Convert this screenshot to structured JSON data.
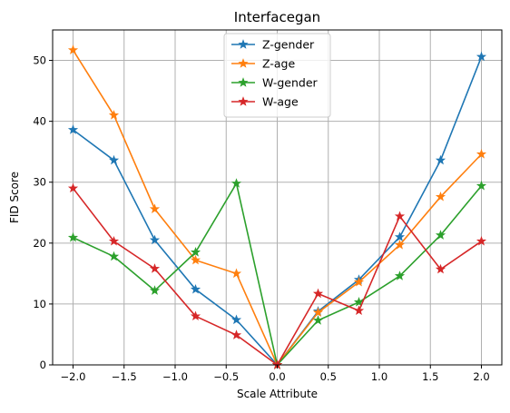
{
  "chart_data": {
    "type": "line",
    "title": "Interfacegan",
    "xlabel": "Scale Attribute",
    "ylabel": "FID Score",
    "xlim": [
      -2.2,
      2.2
    ],
    "ylim": [
      0,
      55
    ],
    "x_ticks": [
      -2.0,
      -1.5,
      -1.0,
      -0.5,
      0.0,
      0.5,
      1.0,
      1.5,
      2.0
    ],
    "x_tick_labels": [
      "−2.0",
      "−1.5",
      "−1.0",
      "−0.5",
      "0.0",
      "0.5",
      "1.0",
      "1.5",
      "2.0"
    ],
    "y_ticks": [
      0,
      10,
      20,
      30,
      40,
      50
    ],
    "y_tick_labels": [
      "0",
      "10",
      "20",
      "30",
      "40",
      "50"
    ],
    "grid": true,
    "legend_position": "top-center",
    "marker": "star",
    "x": [
      -2.0,
      -1.6,
      -1.2,
      -0.8,
      -0.4,
      0.0,
      0.4,
      0.8,
      1.2,
      1.6,
      2.0
    ],
    "series": [
      {
        "name": "Z-gender",
        "color": "#1f77b4",
        "values": [
          38.6,
          33.6,
          20.5,
          12.4,
          7.4,
          0,
          8.8,
          14.0,
          21.0,
          33.6,
          50.6
        ]
      },
      {
        "name": "Z-age",
        "color": "#ff7f0e",
        "values": [
          51.7,
          41.0,
          25.6,
          17.2,
          15.0,
          0,
          8.6,
          13.6,
          19.7,
          27.6,
          34.6
        ]
      },
      {
        "name": "W-gender",
        "color": "#2ca02c",
        "values": [
          20.9,
          17.8,
          12.2,
          18.5,
          29.8,
          0,
          7.3,
          10.3,
          14.6,
          21.3,
          29.4
        ]
      },
      {
        "name": "W-age",
        "color": "#d62728",
        "values": [
          29.0,
          20.3,
          15.8,
          8.0,
          4.9,
          0,
          11.7,
          8.9,
          24.4,
          15.7,
          20.3
        ]
      }
    ]
  }
}
